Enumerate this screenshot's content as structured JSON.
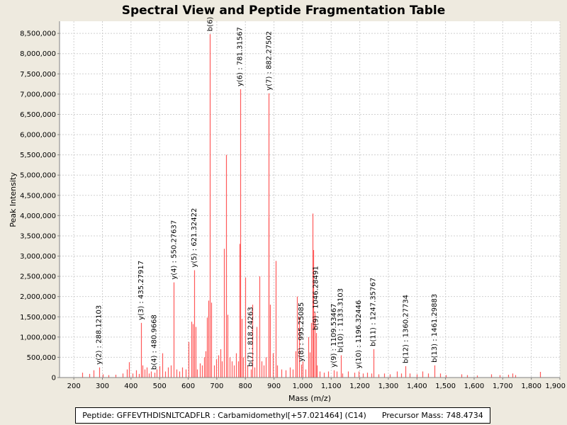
{
  "chart_data": {
    "type": "bar",
    "title": "Spectral View and Peptide Fragmentation Table",
    "xlabel": "Mass (m/z)",
    "ylabel": "Peak Intensity",
    "xlim": [
      150,
      1900
    ],
    "ylim": [
      0,
      8800000
    ],
    "x_ticks": [
      "200",
      "300",
      "400",
      "500",
      "600",
      "700",
      "800",
      "900",
      "1,000",
      "1,100",
      "1,200",
      "1,300",
      "1,400",
      "1,500",
      "1,600",
      "1,700",
      "1,800",
      "1,900"
    ],
    "x_tick_values": [
      200,
      300,
      400,
      500,
      600,
      700,
      800,
      900,
      1000,
      1100,
      1200,
      1300,
      1400,
      1500,
      1600,
      1700,
      1800,
      1900
    ],
    "y_ticks": [
      "0",
      "500,000",
      "1,000,000",
      "1,500,000",
      "2,000,000",
      "2,500,000",
      "3,000,000",
      "3,500,000",
      "4,000,000",
      "4,500,000",
      "5,000,000",
      "5,500,000",
      "6,000,000",
      "6,500,000",
      "7,000,000",
      "7,500,000",
      "8,000,000",
      "8,500,000"
    ],
    "y_tick_values": [
      0,
      500000,
      1000000,
      1500000,
      2000000,
      2500000,
      3000000,
      3500000,
      4000000,
      4500000,
      5000000,
      5500000,
      6000000,
      6500000,
      7000000,
      7500000,
      8000000,
      8500000
    ],
    "grid": true,
    "bar_color": "#ff5a5a",
    "peaks": [
      {
        "mz": 288.12103,
        "intensity": 250000,
        "label": "y(2) : 288.12103"
      },
      {
        "mz": 435.27917,
        "intensity": 1350000,
        "label": "y(3) : 435.27917"
      },
      {
        "mz": 480.9668,
        "intensity": 120000,
        "label": "b(4) : 480.9668"
      },
      {
        "mz": 550.27637,
        "intensity": 2350000,
        "label": "y(4) : 550.27637"
      },
      {
        "mz": 621.32422,
        "intensity": 2650000,
        "label": "y(5) : 621.32422"
      },
      {
        "mz": 676.5,
        "intensity": 8480000,
        "label": "b(6)"
      },
      {
        "mz": 781.31567,
        "intensity": 7120000,
        "label": "y(6) : 781.31567"
      },
      {
        "mz": 818.24263,
        "intensity": 200000,
        "label": "b(7) : 818.24263"
      },
      {
        "mz": 882.27502,
        "intensity": 7020000,
        "label": "y(7) : 882.27502"
      },
      {
        "mz": 995.25085,
        "intensity": 320000,
        "label": "y(8) : 995.25085"
      },
      {
        "mz": 1046.28491,
        "intensity": 1100000,
        "label": "b(9) : 1046.28491"
      },
      {
        "mz": 1109.53467,
        "intensity": 180000,
        "label": "y(9) : 1109.53467"
      },
      {
        "mz": 1133.3103,
        "intensity": 550000,
        "label": "b(10) : 1133.3103"
      },
      {
        "mz": 1196.32446,
        "intensity": 150000,
        "label": "y(10) : 1196.32446"
      },
      {
        "mz": 1247.35767,
        "intensity": 700000,
        "label": "b(11) : 1247.35767"
      },
      {
        "mz": 1360.27734,
        "intensity": 280000,
        "label": "b(12) : 1360.27734"
      },
      {
        "mz": 1461.29883,
        "intensity": 300000,
        "label": "b(13) : 1461.29883"
      },
      {
        "mz": 230,
        "intensity": 120000
      },
      {
        "mz": 255,
        "intensity": 90000
      },
      {
        "mz": 270,
        "intensity": 180000
      },
      {
        "mz": 300,
        "intensity": 80000
      },
      {
        "mz": 320,
        "intensity": 60000
      },
      {
        "mz": 345,
        "intensity": 70000
      },
      {
        "mz": 370,
        "intensity": 100000
      },
      {
        "mz": 385,
        "intensity": 200000
      },
      {
        "mz": 392,
        "intensity": 380000
      },
      {
        "mz": 405,
        "intensity": 100000
      },
      {
        "mz": 418,
        "intensity": 180000
      },
      {
        "mz": 428,
        "intensity": 90000
      },
      {
        "mz": 440,
        "intensity": 300000
      },
      {
        "mz": 448,
        "intensity": 200000
      },
      {
        "mz": 455,
        "intensity": 250000
      },
      {
        "mz": 462,
        "intensity": 100000
      },
      {
        "mz": 470,
        "intensity": 150000
      },
      {
        "mz": 490,
        "intensity": 200000
      },
      {
        "mz": 500,
        "intensity": 280000
      },
      {
        "mz": 510,
        "intensity": 600000
      },
      {
        "mz": 520,
        "intensity": 150000
      },
      {
        "mz": 530,
        "intensity": 250000
      },
      {
        "mz": 540,
        "intensity": 300000
      },
      {
        "mz": 560,
        "intensity": 200000
      },
      {
        "mz": 570,
        "intensity": 150000
      },
      {
        "mz": 580,
        "intensity": 250000
      },
      {
        "mz": 590,
        "intensity": 200000
      },
      {
        "mz": 600,
        "intensity": 880000
      },
      {
        "mz": 612,
        "intensity": 1380000
      },
      {
        "mz": 615,
        "intensity": 1320000
      },
      {
        "mz": 625,
        "intensity": 1250000
      },
      {
        "mz": 630,
        "intensity": 200000
      },
      {
        "mz": 640,
        "intensity": 350000
      },
      {
        "mz": 648,
        "intensity": 300000
      },
      {
        "mz": 655,
        "intensity": 500000
      },
      {
        "mz": 660,
        "intensity": 650000
      },
      {
        "mz": 665,
        "intensity": 1480000
      },
      {
        "mz": 670,
        "intensity": 1900000
      },
      {
        "mz": 680,
        "intensity": 1850000
      },
      {
        "mz": 690,
        "intensity": 300000
      },
      {
        "mz": 698,
        "intensity": 450000
      },
      {
        "mz": 705,
        "intensity": 550000
      },
      {
        "mz": 712,
        "intensity": 700000
      },
      {
        "mz": 718,
        "intensity": 400000
      },
      {
        "mz": 725,
        "intensity": 3180000
      },
      {
        "mz": 732,
        "intensity": 5500000
      },
      {
        "mz": 738,
        "intensity": 1550000
      },
      {
        "mz": 745,
        "intensity": 500000
      },
      {
        "mz": 752,
        "intensity": 400000
      },
      {
        "mz": 760,
        "intensity": 300000
      },
      {
        "mz": 768,
        "intensity": 600000
      },
      {
        "mz": 774,
        "intensity": 400000
      },
      {
        "mz": 780,
        "intensity": 3300000
      },
      {
        "mz": 786,
        "intensity": 1450000
      },
      {
        "mz": 792,
        "intensity": 500000
      },
      {
        "mz": 800,
        "intensity": 2470000
      },
      {
        "mz": 808,
        "intensity": 300000
      },
      {
        "mz": 825,
        "intensity": 1800000
      },
      {
        "mz": 832,
        "intensity": 250000
      },
      {
        "mz": 840,
        "intensity": 1250000
      },
      {
        "mz": 848,
        "intensity": 2500000
      },
      {
        "mz": 856,
        "intensity": 400000
      },
      {
        "mz": 864,
        "intensity": 300000
      },
      {
        "mz": 872,
        "intensity": 500000
      },
      {
        "mz": 880,
        "intensity": 3950000
      },
      {
        "mz": 887,
        "intensity": 1800000
      },
      {
        "mz": 895,
        "intensity": 600000
      },
      {
        "mz": 905,
        "intensity": 2880000
      },
      {
        "mz": 912,
        "intensity": 300000
      },
      {
        "mz": 925,
        "intensity": 200000
      },
      {
        "mz": 940,
        "intensity": 180000
      },
      {
        "mz": 955,
        "intensity": 250000
      },
      {
        "mz": 965,
        "intensity": 200000
      },
      {
        "mz": 975,
        "intensity": 650000
      },
      {
        "mz": 980,
        "intensity": 2000000
      },
      {
        "mz": 988,
        "intensity": 1500000
      },
      {
        "mz": 1000,
        "intensity": 400000
      },
      {
        "mz": 1010,
        "intensity": 200000
      },
      {
        "mz": 1020,
        "intensity": 1000000
      },
      {
        "mz": 1025,
        "intensity": 620000
      },
      {
        "mz": 1030,
        "intensity": 1350000
      },
      {
        "mz": 1035,
        "intensity": 4050000
      },
      {
        "mz": 1038,
        "intensity": 3150000
      },
      {
        "mz": 1042,
        "intensity": 1600000
      },
      {
        "mz": 1050,
        "intensity": 300000
      },
      {
        "mz": 1060,
        "intensity": 150000
      },
      {
        "mz": 1075,
        "intensity": 120000
      },
      {
        "mz": 1090,
        "intensity": 150000
      },
      {
        "mz": 1118,
        "intensity": 150000
      },
      {
        "mz": 1140,
        "intensity": 100000
      },
      {
        "mz": 1160,
        "intensity": 150000
      },
      {
        "mz": 1180,
        "intensity": 120000
      },
      {
        "mz": 1210,
        "intensity": 100000
      },
      {
        "mz": 1225,
        "intensity": 120000
      },
      {
        "mz": 1240,
        "intensity": 100000
      },
      {
        "mz": 1265,
        "intensity": 80000
      },
      {
        "mz": 1285,
        "intensity": 100000
      },
      {
        "mz": 1305,
        "intensity": 80000
      },
      {
        "mz": 1330,
        "intensity": 150000
      },
      {
        "mz": 1345,
        "intensity": 100000
      },
      {
        "mz": 1375,
        "intensity": 100000
      },
      {
        "mz": 1400,
        "intensity": 80000
      },
      {
        "mz": 1420,
        "intensity": 150000
      },
      {
        "mz": 1440,
        "intensity": 100000
      },
      {
        "mz": 1480,
        "intensity": 100000
      },
      {
        "mz": 1500,
        "intensity": 60000
      },
      {
        "mz": 1555,
        "intensity": 80000
      },
      {
        "mz": 1575,
        "intensity": 60000
      },
      {
        "mz": 1610,
        "intensity": 50000
      },
      {
        "mz": 1660,
        "intensity": 80000
      },
      {
        "mz": 1690,
        "intensity": 60000
      },
      {
        "mz": 1720,
        "intensity": 70000
      },
      {
        "mz": 1735,
        "intensity": 100000
      },
      {
        "mz": 1745,
        "intensity": 60000
      },
      {
        "mz": 1830,
        "intensity": 140000
      }
    ]
  },
  "footer": {
    "peptide": "Peptide: GFFEVTHDISNLTCADFLR : Carbamidomethyl[+57.021464] (C14)",
    "precursor": "Precursor Mass: 748.4734"
  }
}
